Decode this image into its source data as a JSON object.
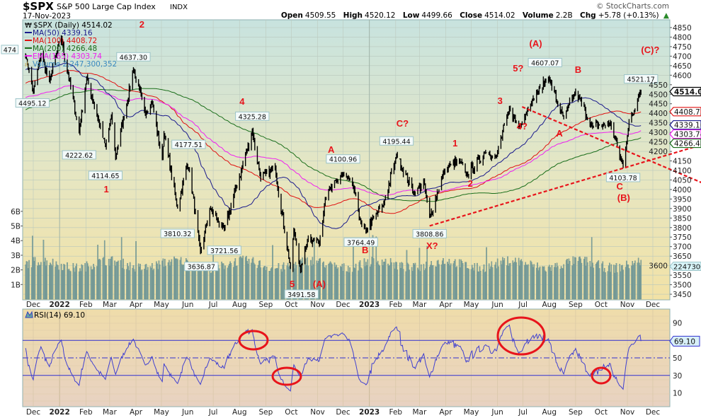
{
  "header": {
    "symbol": "$SPX",
    "name": "S&P 500 Large Cap Index",
    "exchange": "INDX",
    "date": "17-Nov-2023",
    "watermark": "© StockCharts.com",
    "quote": [
      {
        "label": "Open",
        "value": "4509.55"
      },
      {
        "label": "High",
        "value": "4520.12"
      },
      {
        "label": "Low",
        "value": "4499.66"
      },
      {
        "label": "Close",
        "value": "4514.02"
      },
      {
        "label": "Volume",
        "value": "2.2B"
      },
      {
        "label": "Chg",
        "value": "+5.78 (+0.13%)"
      }
    ]
  },
  "legend": {
    "price": "$SPX (Daily) 4514.02",
    "ma50": "MA(50) 4339.16",
    "ma100": "MA(100) 4408.72",
    "ma200": "MA(200) 4266.48",
    "ema165": "EMA(165) 4303.74",
    "volume": "Volume 2,247,300,352",
    "rsi": "RSI(14) 69.10"
  },
  "colors": {
    "ma50": "#1a1a8c",
    "ma100": "#e01010",
    "ma200": "#1a6e1a",
    "ema165": "#f020f0",
    "volume": "#7fa3a0",
    "rsi": "#4040d0",
    "annotation": "#e8141b",
    "price": "#000000"
  },
  "chart_data": [
    {
      "type": "line",
      "title": "$SPX Daily",
      "ylabel": "Price",
      "ylim": [
        3450,
        4850
      ],
      "y_ticks": [
        4850,
        4800,
        4750,
        4700,
        4650,
        4600,
        4550,
        4500,
        4450,
        4400,
        4350,
        4300,
        4250,
        4200,
        4150,
        4100,
        4050,
        4000,
        3950,
        3900,
        3850,
        3800,
        3750,
        3700,
        3650,
        3600,
        3550,
        3500,
        3450
      ],
      "x_ticks": [
        {
          "label": "Dec",
          "date": "2021-12-01"
        },
        {
          "label": "2022",
          "date": "2022-01-01",
          "bold": true
        },
        {
          "label": "Feb",
          "date": "2022-02-01"
        },
        {
          "label": "Mar",
          "date": "2022-03-01"
        },
        {
          "label": "Apr",
          "date": "2022-04-01"
        },
        {
          "label": "May",
          "date": "2022-05-01"
        },
        {
          "label": "Jun",
          "date": "2022-06-01"
        },
        {
          "label": "Jul",
          "date": "2022-07-01"
        },
        {
          "label": "Aug",
          "date": "2022-08-01"
        },
        {
          "label": "Sep",
          "date": "2022-09-01"
        },
        {
          "label": "Oct",
          "date": "2022-10-01"
        },
        {
          "label": "Nov",
          "date": "2022-11-01"
        },
        {
          "label": "Dec",
          "date": "2022-12-01"
        },
        {
          "label": "2023",
          "date": "2023-01-01",
          "bold": true
        },
        {
          "label": "Feb",
          "date": "2023-02-01"
        },
        {
          "label": "Mar",
          "date": "2023-03-01"
        },
        {
          "label": "Apr",
          "date": "2023-04-01"
        },
        {
          "label": "May",
          "date": "2023-05-01"
        },
        {
          "label": "Jun",
          "date": "2023-06-01"
        },
        {
          "label": "Jul",
          "date": "2023-07-01"
        },
        {
          "label": "Aug",
          "date": "2023-08-01"
        },
        {
          "label": "Sep",
          "date": "2023-09-01"
        },
        {
          "label": "Oct",
          "date": "2023-10-01"
        },
        {
          "label": "Nov",
          "date": "2023-11-01"
        },
        {
          "label": "Dec",
          "date": "2023-12-01"
        }
      ],
      "close_pivots": [
        [
          "2021-11-22",
          4700
        ],
        [
          "2021-12-01",
          4513
        ],
        [
          "2021-12-10",
          4712
        ],
        [
          "2021-12-20",
          4568
        ],
        [
          "2022-01-03",
          4796
        ],
        [
          "2022-01-24",
          4300
        ],
        [
          "2022-02-02",
          4590
        ],
        [
          "2022-02-24",
          4225
        ],
        [
          "2022-03-03",
          4390
        ],
        [
          "2022-03-08",
          4170
        ],
        [
          "2022-03-29",
          4631
        ],
        [
          "2022-04-12",
          4397
        ],
        [
          "2022-04-20",
          4460
        ],
        [
          "2022-05-02",
          4155
        ],
        [
          "2022-05-04",
          4300
        ],
        [
          "2022-05-20",
          3901
        ],
        [
          "2022-05-31",
          4132
        ],
        [
          "2022-06-03",
          4108
        ],
        [
          "2022-06-16",
          3666
        ],
        [
          "2022-06-27",
          3900
        ],
        [
          "2022-07-14",
          3790
        ],
        [
          "2022-08-16",
          4305
        ],
        [
          "2022-08-26",
          4057
        ],
        [
          "2022-09-12",
          4110
        ],
        [
          "2022-09-30",
          3585
        ],
        [
          "2022-10-04",
          3790
        ],
        [
          "2022-10-12",
          3577
        ],
        [
          "2022-10-21",
          3752
        ],
        [
          "2022-11-03",
          3720
        ],
        [
          "2022-11-10",
          3956
        ],
        [
          "2022-11-30",
          4080
        ],
        [
          "2022-12-13",
          4019
        ],
        [
          "2022-12-22",
          3822
        ],
        [
          "2022-12-28",
          3783
        ],
        [
          "2023-01-18",
          3928
        ],
        [
          "2023-02-02",
          4179
        ],
        [
          "2023-02-24",
          3970
        ],
        [
          "2023-03-06",
          4048
        ],
        [
          "2023-03-13",
          3855
        ],
        [
          "2023-03-31",
          4109
        ],
        [
          "2023-04-18",
          4154
        ],
        [
          "2023-04-25",
          4071
        ],
        [
          "2023-05-18",
          4198
        ],
        [
          "2023-05-31",
          4180
        ],
        [
          "2023-06-15",
          4425
        ],
        [
          "2023-06-26",
          4328
        ],
        [
          "2023-07-12",
          4472
        ],
        [
          "2023-07-31",
          4589
        ],
        [
          "2023-08-18",
          4370
        ],
        [
          "2023-09-01",
          4515
        ],
        [
          "2023-09-21",
          4330
        ],
        [
          "2023-10-12",
          4349
        ],
        [
          "2023-10-27",
          4117
        ],
        [
          "2023-11-03",
          4358
        ],
        [
          "2023-11-10",
          4415
        ],
        [
          "2023-11-14",
          4495
        ],
        [
          "2023-11-17",
          4514
        ]
      ],
      "callouts": [
        {
          "text": "474",
          "date": "2021-11-20",
          "price": 4735,
          "place": "left"
        },
        {
          "text": "4495.12",
          "date": "2021-11-30",
          "price": 4495.12,
          "place": "below"
        },
        {
          "text": "4222.62",
          "date": "2022-01-24",
          "price": 4222.62,
          "place": "below"
        },
        {
          "text": "4114.65",
          "date": "2022-02-24",
          "price": 4114.65,
          "place": "below"
        },
        {
          "text": "4637.30",
          "date": "2022-03-29",
          "price": 4637.3,
          "place": "above"
        },
        {
          "text": "4177.51",
          "date": "2022-06-02",
          "price": 4177.51,
          "place": "above"
        },
        {
          "text": "3810.32",
          "date": "2022-05-20",
          "price": 3810.32,
          "place": "below"
        },
        {
          "text": "3636.87",
          "date": "2022-06-17",
          "price": 3636.87,
          "place": "below"
        },
        {
          "text": "3721.56",
          "date": "2022-07-14",
          "price": 3721.56,
          "place": "below"
        },
        {
          "text": "4325.28",
          "date": "2022-08-16",
          "price": 4325.28,
          "place": "above"
        },
        {
          "text": "3491.58",
          "date": "2022-10-13",
          "price": 3491.58,
          "place": "below"
        },
        {
          "text": "4100.96",
          "date": "2022-12-01",
          "price": 4100.96,
          "place": "above"
        },
        {
          "text": "3764.49",
          "date": "2022-12-22",
          "price": 3764.49,
          "place": "below"
        },
        {
          "text": "4195.44",
          "date": "2023-02-02",
          "price": 4195.44,
          "place": "above"
        },
        {
          "text": "3808.86",
          "date": "2023-03-13",
          "price": 3808.86,
          "place": "below"
        },
        {
          "text": "4607.07",
          "date": "2023-07-27",
          "price": 4607.07,
          "place": "above"
        },
        {
          "text": "4103.78",
          "date": "2023-10-27",
          "price": 4103.78,
          "place": "below"
        },
        {
          "text": "4521.17",
          "date": "2023-11-17",
          "price": 4521.17,
          "place": "above"
        }
      ],
      "wave_labels": [
        {
          "text": "1",
          "date": "2022-02-25",
          "price": 4003
        },
        {
          "text": "2",
          "date": "2022-04-08",
          "price": 4868
        },
        {
          "text": "4",
          "date": "2022-08-04",
          "price": 4464
        },
        {
          "text": "5",
          "date": "2022-10-02",
          "price": 3506
        },
        {
          "text": "(A)",
          "date": "2022-11-03",
          "price": 3506
        },
        {
          "text": "A",
          "date": "2022-11-17",
          "price": 4211
        },
        {
          "text": "B",
          "date": "2022-12-27",
          "price": 3684
        },
        {
          "text": "C?",
          "date": "2023-02-09",
          "price": 4349
        },
        {
          "text": "X?",
          "date": "2023-03-16",
          "price": 3736
        },
        {
          "text": "1",
          "date": "2023-04-12",
          "price": 4245
        },
        {
          "text": "2",
          "date": "2023-04-30",
          "price": 4033
        },
        {
          "text": "3",
          "date": "2023-06-04",
          "price": 4468
        },
        {
          "text": "4?",
          "date": "2023-06-30",
          "price": 4334
        },
        {
          "text": "5?",
          "date": "2023-07-07",
          "price": 4638
        },
        {
          "text": "(A)",
          "date": "2023-07-16",
          "price": 4768
        },
        {
          "text": "A",
          "date": "2023-08-13",
          "price": 4297
        },
        {
          "text": "B",
          "date": "2023-09-04",
          "price": 4631
        },
        {
          "text": "C",
          "date": "2023-10-23",
          "price": 4089
        },
        {
          "text": "(B)",
          "date": "2023-10-26",
          "price": 4022
        },
        {
          "text": "(C)?",
          "date": "2023-11-28",
          "price": 4735
        }
      ],
      "trendlines": [
        {
          "from": [
            "2023-03-13",
            3808.86
          ],
          "to": [
            "2024-01-27",
            4234
          ]
        },
        {
          "from": [
            "2023-06-30",
            4434
          ],
          "to": [
            "2024-01-27",
            4037
          ]
        }
      ],
      "value_tags": [
        {
          "text": "4514.02",
          "price": 4514.02,
          "series": "price"
        },
        {
          "text": "4408.72",
          "price": 4408.72,
          "series": "ma100"
        },
        {
          "text": "4339.16",
          "price": 4339.16,
          "series": "ma50"
        },
        {
          "text": "4303.74",
          "price": 4303.74,
          "series": "ema165"
        },
        {
          "text": "4266.48",
          "price": 4266.48,
          "series": "ma200"
        }
      ],
      "volume": {
        "ticks": [
          "1B",
          "2B",
          "3B",
          "4B",
          "5B",
          "6B"
        ],
        "last_tag": "2247300",
        "last_value": 2247300352
      }
    },
    {
      "type": "line",
      "title": "RSI(14)",
      "ylim": [
        0,
        100
      ],
      "y_ticks": [
        90,
        50,
        30,
        10
      ],
      "reference_lines": [
        70,
        50,
        30
      ],
      "last_value": "69.10"
    }
  ]
}
